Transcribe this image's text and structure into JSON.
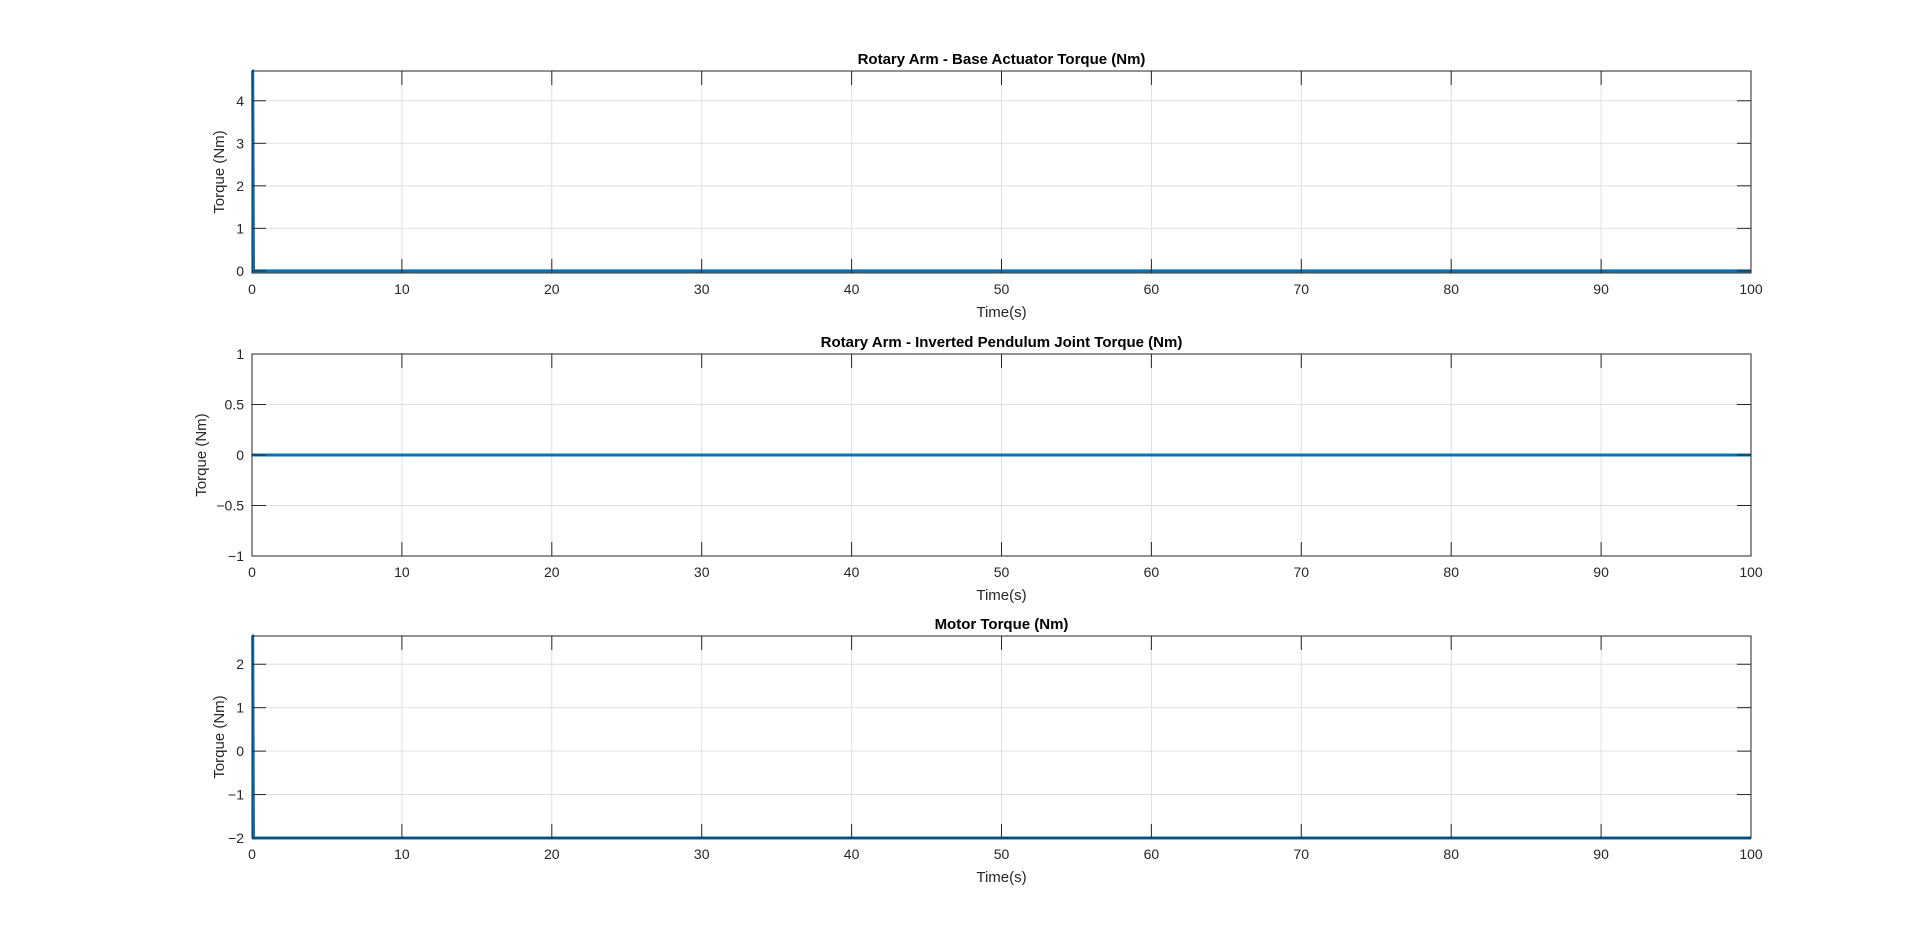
{
  "figure": {
    "background": "#ffffff",
    "line_color": "#0072BD",
    "grid_color": "#dfdfdf",
    "axes_color": "#262626"
  },
  "chart_data": [
    {
      "type": "line",
      "title": "Rotary Arm - Base Actuator Torque (Nm)",
      "xlabel": "Time(s)",
      "ylabel": "Torque (Nm)",
      "xlim": [
        0,
        100
      ],
      "ylim": [
        -0.05,
        4.7
      ],
      "xticks": [
        0,
        10,
        20,
        30,
        40,
        50,
        60,
        70,
        80,
        90,
        100
      ],
      "yticks": [
        0,
        1,
        2,
        3,
        4
      ],
      "grid": true,
      "series": [
        {
          "x": [
            0,
            0.05,
            0.1,
            100
          ],
          "y": [
            4.7,
            4.7,
            0,
            0
          ]
        }
      ]
    },
    {
      "type": "line",
      "title": "Rotary Arm - Inverted Pendulum Joint Torque (Nm)",
      "xlabel": "Time(s)",
      "ylabel": "Torque (Nm)",
      "xlim": [
        0,
        100
      ],
      "ylim": [
        -1,
        1
      ],
      "xticks": [
        0,
        10,
        20,
        30,
        40,
        50,
        60,
        70,
        80,
        90,
        100
      ],
      "yticks": [
        -1,
        -0.5,
        0,
        0.5,
        1
      ],
      "grid": true,
      "series": [
        {
          "x": [
            0,
            100
          ],
          "y": [
            0,
            0
          ]
        }
      ]
    },
    {
      "type": "line",
      "title": "Motor Torque (Nm)",
      "xlabel": "Time(s)",
      "ylabel": "Torque (Nm)",
      "xlim": [
        0,
        100
      ],
      "ylim": [
        -2,
        2.65
      ],
      "xticks": [
        0,
        10,
        20,
        30,
        40,
        50,
        60,
        70,
        80,
        90,
        100
      ],
      "yticks": [
        -2,
        -1,
        0,
        1,
        2
      ],
      "grid": true,
      "series": [
        {
          "x": [
            0,
            0.05,
            0.1,
            100
          ],
          "y": [
            2.65,
            2.65,
            -2,
            -2
          ]
        }
      ]
    }
  ]
}
